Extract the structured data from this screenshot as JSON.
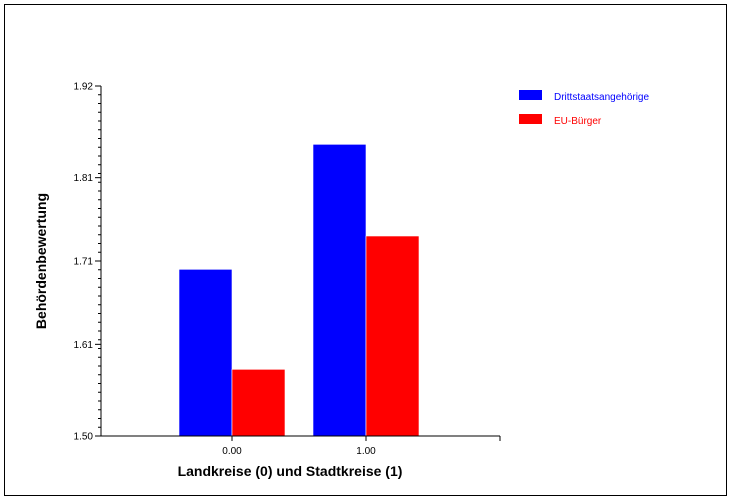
{
  "chart_data": {
    "type": "bar",
    "title": "",
    "xlabel": "Landkreise (0) und Stadtkreise (1)",
    "ylabel": "Behördenbewertung",
    "categories": [
      "0.00",
      "1.00"
    ],
    "series": [
      {
        "name": "Drittstaatsangehörige",
        "values": [
          1.7,
          1.85
        ],
        "color": "#0000ff"
      },
      {
        "name": "EU-Bürger",
        "values": [
          1.58,
          1.74
        ],
        "color": "#ff0000"
      }
    ],
    "ylim": [
      1.5,
      1.92
    ],
    "yticks": [
      "1.50",
      "1.61",
      "1.71",
      "1.81",
      "1.92"
    ],
    "grid": false,
    "legend_position": "top-right"
  }
}
